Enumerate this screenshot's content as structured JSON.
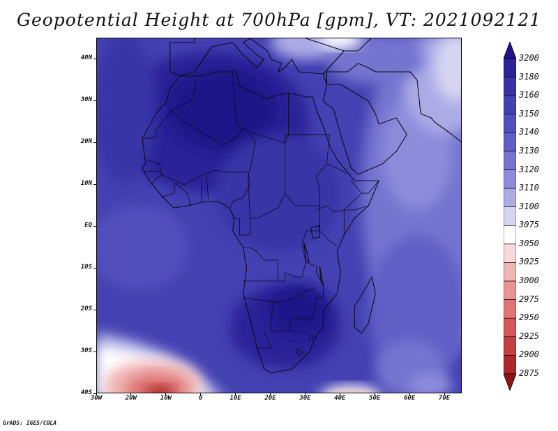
{
  "title": "Geopotential Height at 700hPa [gpm], VT: 2021092121",
  "credit": "GrADS: IGES/COLA",
  "map": {
    "lon_range": [
      -30,
      75
    ],
    "lat_range": [
      -40,
      45
    ],
    "lat_labels": [
      {
        "lat": 40,
        "text": "40N"
      },
      {
        "lat": 30,
        "text": "30N"
      },
      {
        "lat": 20,
        "text": "20N"
      },
      {
        "lat": 10,
        "text": "10N"
      },
      {
        "lat": 0,
        "text": "EQ"
      },
      {
        "lat": -10,
        "text": "10S"
      },
      {
        "lat": -20,
        "text": "20S"
      },
      {
        "lat": -30,
        "text": "30S"
      },
      {
        "lat": -40,
        "text": "40S"
      }
    ],
    "lon_labels": [
      {
        "lon": -30,
        "text": "30W"
      },
      {
        "lon": -20,
        "text": "20W"
      },
      {
        "lon": -10,
        "text": "10W"
      },
      {
        "lon": 0,
        "text": "0"
      },
      {
        "lon": 10,
        "text": "10E"
      },
      {
        "lon": 20,
        "text": "20E"
      },
      {
        "lon": 30,
        "text": "30E"
      },
      {
        "lon": 40,
        "text": "40E"
      },
      {
        "lon": 50,
        "text": "50E"
      },
      {
        "lon": 60,
        "text": "60E"
      },
      {
        "lon": 70,
        "text": "70E"
      }
    ]
  },
  "legend": {
    "levels": [
      "3200",
      "3180",
      "3160",
      "3150",
      "3140",
      "3130",
      "3120",
      "3110",
      "3100",
      "3075",
      "3050",
      "3025",
      "3000",
      "2975",
      "2950",
      "2925",
      "2900",
      "2875"
    ],
    "colors": [
      "#1e1488",
      "#2b2398",
      "#3834a6",
      "#4442b2",
      "#5250bd",
      "#605fc6",
      "#7574d0",
      "#8d8cdb",
      "#acabe6",
      "#d6d6f2",
      "#ffffff",
      "#f8d8d8",
      "#f0b5b5",
      "#e89494",
      "#df7575",
      "#d45757",
      "#c43f3f",
      "#ad2828",
      "#911515"
    ]
  },
  "fields": {
    "africa": [
      [
        -17,
        21
      ],
      [
        -16,
        15
      ],
      [
        -17,
        14
      ],
      [
        -15,
        11
      ],
      [
        -13,
        9
      ],
      [
        -11,
        7
      ],
      [
        -8,
        4.5
      ],
      [
        -4,
        5
      ],
      [
        1,
        6
      ],
      [
        5,
        6
      ],
      [
        8,
        4.5
      ],
      [
        9.5,
        2
      ],
      [
        9,
        -1
      ],
      [
        12,
        -5
      ],
      [
        13,
        -10
      ],
      [
        12,
        -16
      ],
      [
        14,
        -22
      ],
      [
        16,
        -29
      ],
      [
        18,
        -34
      ],
      [
        20,
        -35
      ],
      [
        26,
        -34
      ],
      [
        31,
        -30
      ],
      [
        33,
        -26
      ],
      [
        35,
        -24
      ],
      [
        35,
        -20
      ],
      [
        39,
        -16
      ],
      [
        40,
        -11
      ],
      [
        39,
        -6
      ],
      [
        41,
        -2
      ],
      [
        44,
        2
      ],
      [
        48,
        5
      ],
      [
        51,
        11
      ],
      [
        44,
        11
      ],
      [
        43,
        12
      ],
      [
        39,
        16
      ],
      [
        37,
        19
      ],
      [
        35,
        24
      ],
      [
        33,
        28
      ],
      [
        32,
        31
      ],
      [
        30,
        31
      ],
      [
        25,
        32
      ],
      [
        20,
        31
      ],
      [
        19,
        30.5
      ],
      [
        15,
        32
      ],
      [
        11,
        33.5
      ],
      [
        10,
        37
      ],
      [
        5,
        37
      ],
      [
        0,
        36
      ],
      [
        -6,
        36
      ],
      [
        -9,
        33
      ],
      [
        -10,
        30
      ],
      [
        -13,
        27
      ],
      [
        -17,
        21
      ]
    ],
    "madagascar": [
      [
        49,
        -12
      ],
      [
        50,
        -16
      ],
      [
        48,
        -23
      ],
      [
        46,
        -25.5
      ],
      [
        44,
        -24
      ],
      [
        44,
        -19
      ],
      [
        47,
        -15
      ],
      [
        49,
        -12
      ]
    ],
    "arabia": [
      [
        35,
        30
      ],
      [
        38,
        28
      ],
      [
        40,
        22
      ],
      [
        43,
        14
      ],
      [
        45,
        12.5
      ],
      [
        52,
        15
      ],
      [
        56,
        18
      ],
      [
        59,
        22
      ],
      [
        56,
        26
      ],
      [
        51,
        24.5
      ],
      [
        50,
        27
      ],
      [
        48,
        30
      ],
      [
        40,
        34
      ],
      [
        36,
        34
      ],
      [
        35,
        30
      ]
    ],
    "europe": [
      [
        -9,
        37
      ],
      [
        -9,
        44
      ],
      [
        -2,
        44
      ],
      [
        -2,
        47
      ],
      [
        0,
        50
      ],
      [
        4,
        52
      ],
      [
        10,
        54
      ],
      [
        12,
        54
      ],
      [
        20,
        54
      ],
      [
        30,
        55
      ],
      [
        30,
        45
      ],
      [
        41,
        42
      ],
      [
        35,
        36.5
      ],
      [
        28,
        37
      ],
      [
        26,
        40
      ],
      [
        24,
        38
      ],
      [
        22,
        37
      ],
      [
        23,
        39
      ],
      [
        20,
        40
      ],
      [
        19,
        42
      ],
      [
        14,
        45
      ],
      [
        12,
        44
      ],
      [
        16,
        41
      ],
      [
        18,
        40
      ],
      [
        16,
        38
      ],
      [
        12,
        41
      ],
      [
        9,
        44
      ],
      [
        3,
        43
      ],
      [
        -2,
        37
      ],
      [
        -6,
        36
      ],
      [
        -9,
        37
      ]
    ],
    "mideast": [
      [
        36,
        34
      ],
      [
        36,
        37
      ],
      [
        42,
        37
      ],
      [
        45,
        39
      ],
      [
        48,
        38
      ],
      [
        50,
        37
      ],
      [
        54,
        37
      ],
      [
        60,
        37
      ],
      [
        62,
        35
      ],
      [
        63,
        27
      ],
      [
        66,
        26
      ],
      [
        67,
        25
      ],
      [
        72,
        22
      ],
      [
        75,
        20
      ],
      [
        75,
        46
      ],
      [
        50,
        46
      ],
      [
        45,
        42
      ],
      [
        41,
        42
      ],
      [
        35,
        36.5
      ],
      [
        36,
        34
      ]
    ],
    "borders": [
      [
        [
          -8.7,
          27.7
        ],
        [
          -3,
          30
        ],
        [
          -2,
          32
        ],
        [
          -1.7,
          35
        ]
      ],
      [
        [
          -8.7,
          27.7
        ],
        [
          -4.8,
          25
        ],
        [
          6,
          19.5
        ],
        [
          9.8,
          21
        ],
        [
          12,
          23.5
        ],
        [
          14,
          22.6
        ],
        [
          24,
          20
        ],
        [
          24,
          22
        ],
        [
          36.8,
          22
        ]
      ],
      [
        [
          -17,
          21
        ],
        [
          -13,
          21.3
        ],
        [
          -13,
          23
        ],
        [
          -8.7,
          27.7
        ]
      ],
      [
        [
          -16,
          16
        ],
        [
          -12,
          15
        ],
        [
          -11.5,
          12.5
        ],
        [
          -5,
          10
        ],
        [
          -2.8,
          11
        ],
        [
          1,
          12.5
        ],
        [
          4,
          13.5
        ],
        [
          7,
          13
        ],
        [
          13.5,
          13
        ],
        [
          14,
          13.5
        ],
        [
          15.5,
          20
        ],
        [
          14,
          22.6
        ]
      ],
      [
        [
          9,
          37
        ],
        [
          9.5,
          30
        ],
        [
          10,
          24.5
        ],
        [
          11.8,
          23.5
        ]
      ],
      [
        [
          25,
          32
        ],
        [
          25,
          22
        ],
        [
          24,
          20
        ],
        [
          24,
          8
        ],
        [
          22,
          4.5
        ],
        [
          16,
          2
        ],
        [
          14,
          2
        ],
        [
          13.5,
          10
        ],
        [
          13.5,
          13
        ]
      ],
      [
        [
          24,
          8
        ],
        [
          27,
          5
        ],
        [
          34,
          5
        ],
        [
          34,
          -1
        ],
        [
          30,
          -1
        ],
        [
          29,
          -4.5
        ],
        [
          30,
          -8.5
        ],
        [
          33,
          -9.5
        ],
        [
          33,
          -11
        ],
        [
          35,
          -14
        ],
        [
          35,
          -17
        ],
        [
          33,
          -17
        ],
        [
          32,
          -22
        ],
        [
          29,
          -22
        ],
        [
          26,
          -22
        ],
        [
          25,
          -25
        ],
        [
          20,
          -25
        ],
        [
          20,
          -22
        ],
        [
          21,
          -18
        ],
        [
          23,
          -18
        ],
        [
          25,
          -17.5
        ],
        [
          27,
          -17
        ],
        [
          29,
          -16
        ],
        [
          30,
          -15.5
        ],
        [
          33,
          -14.5
        ]
      ],
      [
        [
          22,
          -13
        ],
        [
          24,
          -13
        ],
        [
          24,
          -11
        ],
        [
          27,
          -12
        ],
        [
          29,
          -12
        ],
        [
          30,
          -8.5
        ]
      ],
      [
        [
          12,
          -5
        ],
        [
          14,
          -5
        ],
        [
          16,
          -6
        ],
        [
          18,
          -8
        ],
        [
          22,
          -8
        ],
        [
          22,
          -13
        ],
        [
          12,
          -13
        ]
      ],
      [
        [
          21,
          -18
        ],
        [
          12,
          -17
        ]
      ],
      [
        [
          33,
          4
        ],
        [
          36,
          5
        ],
        [
          38,
          3.5
        ],
        [
          41,
          4
        ],
        [
          41,
          -2
        ]
      ],
      [
        [
          34,
          -1
        ],
        [
          37,
          -3.5
        ],
        [
          39,
          -4.6
        ]
      ],
      [
        [
          36.8,
          22
        ],
        [
          36,
          15
        ],
        [
          33,
          12
        ],
        [
          34,
          9
        ],
        [
          34,
          5
        ]
      ],
      [
        [
          36,
          15
        ],
        [
          39,
          14
        ],
        [
          42,
          12.5
        ]
      ],
      [
        [
          43,
          11
        ],
        [
          46,
          8
        ],
        [
          48,
          8
        ],
        [
          51,
          11
        ]
      ],
      [
        [
          46,
          8
        ],
        [
          41,
          4
        ],
        [
          44,
          4
        ],
        [
          48,
          5
        ]
      ],
      [
        [
          -11.5,
          7
        ],
        [
          -8,
          8
        ],
        [
          -7.5,
          10.5
        ],
        [
          -4,
          8
        ],
        [
          -3,
          5
        ]
      ],
      [
        [
          0,
          11
        ],
        [
          0,
          6
        ]
      ],
      [
        [
          1.5,
          12
        ],
        [
          2,
          6.4
        ]
      ],
      [
        [
          8.5,
          4.5
        ],
        [
          9,
          6
        ],
        [
          12,
          7
        ],
        [
          14,
          10
        ],
        [
          13.5,
          13
        ]
      ],
      [
        [
          -14.5,
          10
        ],
        [
          -13,
          11.5
        ],
        [
          -11,
          12.5
        ]
      ],
      [
        [
          -17,
          13
        ],
        [
          -15,
          13.3
        ],
        [
          -12,
          13.2
        ]
      ],
      [
        [
          9,
          2
        ],
        [
          11,
          2
        ],
        [
          11,
          -2
        ],
        [
          14,
          -2
        ],
        [
          14,
          2
        ]
      ],
      [
        [
          24,
          22
        ],
        [
          36.8,
          22
        ]
      ],
      [
        [
          18,
          -25
        ],
        [
          20,
          -29
        ],
        [
          16,
          -29
        ]
      ],
      [
        [
          27,
          -29
        ],
        [
          29,
          -30
        ],
        [
          28,
          -31
        ],
        [
          27,
          -29
        ]
      ],
      [
        [
          31,
          -27
        ],
        [
          32,
          -27
        ],
        [
          32,
          -26
        ],
        [
          31,
          -26
        ],
        [
          31,
          -27
        ]
      ]
    ],
    "lakes": [
      [
        [
          31.5,
          -0.3
        ],
        [
          33.8,
          0.3
        ],
        [
          34,
          -2.5
        ],
        [
          32,
          -2.8
        ],
        [
          31.5,
          -0.3
        ]
      ],
      [
        [
          29.5,
          -4
        ],
        [
          30,
          -8
        ],
        [
          31,
          -8.5
        ],
        [
          30,
          -5
        ],
        [
          29.5,
          -4
        ]
      ],
      [
        [
          34,
          -9.5
        ],
        [
          34.6,
          -12
        ],
        [
          35,
          -14
        ],
        [
          34.3,
          -13
        ],
        [
          34,
          -9.5
        ]
      ]
    ]
  }
}
